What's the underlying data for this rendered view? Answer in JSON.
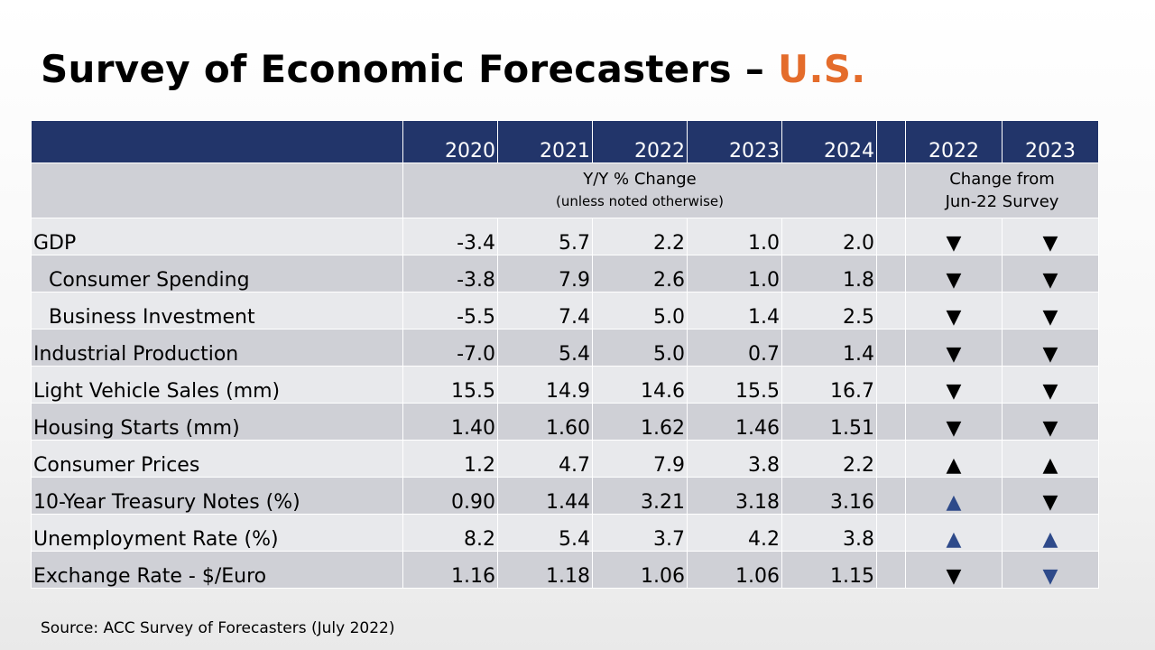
{
  "title": {
    "main": "Survey of Economic Forecasters – ",
    "accent": "U.S."
  },
  "colors": {
    "header_bg": "#22356A",
    "accent": "#E46C2B",
    "row_light": "#E8E9EC",
    "row_dark": "#CFD0D6",
    "blue_arrow": "#2E4A8A"
  },
  "header": {
    "years": [
      "2020",
      "2021",
      "2022",
      "2023",
      "2024"
    ],
    "change_years": [
      "2022",
      "2023"
    ]
  },
  "subheader": {
    "yy_line1": "Y/Y % Change",
    "yy_line2": "(unless noted otherwise)",
    "change_line1": "Change from",
    "change_line2": "Jun-22 Survey"
  },
  "rows": [
    {
      "label": "GDP",
      "values": [
        "-3.4",
        "5.7",
        "2.2",
        "1.0",
        "2.0"
      ],
      "c1": "▼",
      "c1_color": "black",
      "c2": "▼",
      "c2_color": "black"
    },
    {
      "label": "Consumer Spending",
      "values": [
        "-3.8",
        "7.9",
        "2.6",
        "1.0",
        "1.8"
      ],
      "c1": "▼",
      "c1_color": "black",
      "c2": "▼",
      "c2_color": "black"
    },
    {
      "label": "Business Investment",
      "values": [
        "-5.5",
        "7.4",
        "5.0",
        "1.4",
        "2.5"
      ],
      "c1": "▼",
      "c1_color": "black",
      "c2": "▼",
      "c2_color": "black"
    },
    {
      "label": "Industrial Production",
      "values": [
        "-7.0",
        "5.4",
        "5.0",
        "0.7",
        "1.4"
      ],
      "c1": "▼",
      "c1_color": "black",
      "c2": "▼",
      "c2_color": "black"
    },
    {
      "label": "Light Vehicle Sales (mm)",
      "values": [
        "15.5",
        "14.9",
        "14.6",
        "15.5",
        "16.7"
      ],
      "c1": "▼",
      "c1_color": "black",
      "c2": "▼",
      "c2_color": "black"
    },
    {
      "label": "Housing Starts (mm)",
      "values": [
        "1.40",
        "1.60",
        "1.62",
        "1.46",
        "1.51"
      ],
      "c1": "▼",
      "c1_color": "black",
      "c2": "▼",
      "c2_color": "black"
    },
    {
      "label": "Consumer Prices",
      "values": [
        "1.2",
        "4.7",
        "7.9",
        "3.8",
        "2.2"
      ],
      "c1": "▲",
      "c1_color": "black",
      "c2": "▲",
      "c2_color": "black"
    },
    {
      "label": "10-Year Treasury Notes (%)",
      "values": [
        "0.90",
        "1.44",
        "3.21",
        "3.18",
        "3.16"
      ],
      "c1": "▲",
      "c1_color": "blue",
      "c2": "▼",
      "c2_color": "black"
    },
    {
      "label": "Unemployment Rate (%)",
      "values": [
        "8.2",
        "5.4",
        "3.7",
        "4.2",
        "3.8"
      ],
      "c1": "▲",
      "c1_color": "blue",
      "c2": "▲",
      "c2_color": "blue"
    },
    {
      "label": "Exchange Rate - $/Euro",
      "values": [
        "1.16",
        "1.18",
        "1.06",
        "1.06",
        "1.15"
      ],
      "c1": "▼",
      "c1_color": "black",
      "c2": "▼",
      "c2_color": "blue"
    }
  ],
  "source": "Source: ACC Survey of Forecasters (July 2022)"
}
